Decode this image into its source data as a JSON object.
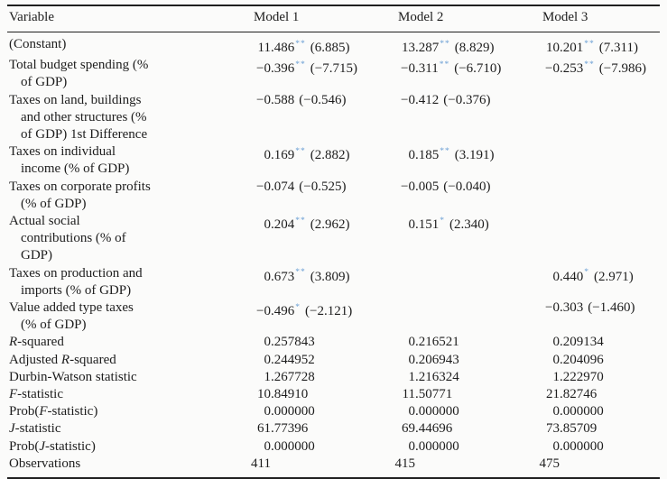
{
  "page": {
    "background": "#fbfbfa",
    "text_color": "#1d1d1d",
    "rule_color": "#1f1f1f",
    "star_color": "#6b9fd4"
  },
  "table": {
    "headers": {
      "variable": "Variable",
      "model1": "Model 1",
      "model2": "Model 2",
      "model3": "Model 3"
    },
    "rows": [
      {
        "label": "(Constant)",
        "m1": {
          "ip": "11",
          "fp": ".486",
          "stars": "**",
          "t": "(6.885)"
        },
        "m2": {
          "ip": "13",
          "fp": ".287",
          "stars": "**",
          "t": "(8.829)"
        },
        "m3": {
          "ip": "10",
          "fp": ".201",
          "stars": "**",
          "t": "(7.311)"
        }
      },
      {
        "label": "Total budget spending (%\nof GDP)",
        "m1": {
          "ip": "−0",
          "fp": ".396",
          "stars": "**",
          "t": "(−7.715)"
        },
        "m2": {
          "ip": "−0",
          "fp": ".311",
          "stars": "**",
          "t": "(−6.710)"
        },
        "m3": {
          "ip": "−0",
          "fp": ".253",
          "stars": "**",
          "t": "(−7.986)"
        }
      },
      {
        "label": "Taxes on land, buildings\nand other structures (%\nof GDP) 1st Difference",
        "m1": {
          "ip": "−0",
          "fp": ".588",
          "stars": "",
          "t": "(−0.546)"
        },
        "m2": {
          "ip": "−0",
          "fp": ".412",
          "stars": "",
          "t": "(−0.376)"
        },
        "m3": null
      },
      {
        "label": "Taxes on individual\nincome (% of GDP)",
        "m1": {
          "ip": "0",
          "fp": ".169",
          "stars": "**",
          "t": "(2.882)"
        },
        "m2": {
          "ip": "0",
          "fp": ".185",
          "stars": "**",
          "t": "(3.191)"
        },
        "m3": null
      },
      {
        "label": "Taxes on corporate profits\n(% of GDP)",
        "m1": {
          "ip": "−0",
          "fp": ".074",
          "stars": "",
          "t": "(−0.525)"
        },
        "m2": {
          "ip": "−0",
          "fp": ".005",
          "stars": "",
          "t": "(−0.040)"
        },
        "m3": null
      },
      {
        "label": "Actual social\ncontributions (% of\nGDP)",
        "m1": {
          "ip": "0",
          "fp": ".204",
          "stars": "**",
          "t": "(2.962)"
        },
        "m2": {
          "ip": "0",
          "fp": ".151",
          "stars": "*",
          "t": "(2.340)"
        },
        "m3": null
      },
      {
        "label": "Taxes on production and\nimports (% of GDP)",
        "m1": {
          "ip": "0",
          "fp": ".673",
          "stars": "**",
          "t": "(3.809)"
        },
        "m2": null,
        "m3": {
          "ip": "0",
          "fp": ".440",
          "stars": "*",
          "t": "(2.971)"
        }
      },
      {
        "label": "Value added type taxes\n(% of GDP)",
        "m1": {
          "ip": "−0",
          "fp": ".496",
          "stars": "*",
          "t": "(−2.121)"
        },
        "m2": null,
        "m3": {
          "ip": "−0",
          "fp": ".303",
          "stars": "",
          "t": "(−1.460)"
        }
      },
      {
        "label": "_R_-squared",
        "m1": {
          "ip": "0",
          "fp": ".257843"
        },
        "m2": {
          "ip": "0",
          "fp": ".216521"
        },
        "m3": {
          "ip": "0",
          "fp": ".209134"
        }
      },
      {
        "label": "Adjusted _R_-squared",
        "m1": {
          "ip": "0",
          "fp": ".244952"
        },
        "m2": {
          "ip": "0",
          "fp": ".206943"
        },
        "m3": {
          "ip": "0",
          "fp": ".204096"
        }
      },
      {
        "label": "Durbin-Watson statistic",
        "m1": {
          "ip": "1",
          "fp": ".267728"
        },
        "m2": {
          "ip": "1",
          "fp": ".216324"
        },
        "m3": {
          "ip": "1",
          "fp": ".222970"
        }
      },
      {
        "label": "_F_-statistic",
        "m1": {
          "ip": "10",
          "fp": ".84910"
        },
        "m2": {
          "ip": "11",
          "fp": ".50771"
        },
        "m3": {
          "ip": "21",
          "fp": ".82746"
        }
      },
      {
        "label": "Prob(_F_-statistic)",
        "m1": {
          "ip": "0",
          "fp": ".000000"
        },
        "m2": {
          "ip": "0",
          "fp": ".000000"
        },
        "m3": {
          "ip": "0",
          "fp": ".000000"
        }
      },
      {
        "label": "_J_-statistic",
        "m1": {
          "ip": "61",
          "fp": ".77396"
        },
        "m2": {
          "ip": "69",
          "fp": ".44696"
        },
        "m3": {
          "ip": "73",
          "fp": ".85709"
        }
      },
      {
        "label": "Prob(_J_-statistic)",
        "m1": {
          "ip": "0",
          "fp": ".000000"
        },
        "m2": {
          "ip": "0",
          "fp": ".000000"
        },
        "m3": {
          "ip": "0",
          "fp": ".000000"
        }
      },
      {
        "label": "Observations",
        "m1": {
          "ip": "411",
          "fp": ""
        },
        "m2": {
          "ip": "415",
          "fp": ""
        },
        "m3": {
          "ip": "475",
          "fp": ""
        }
      }
    ]
  }
}
